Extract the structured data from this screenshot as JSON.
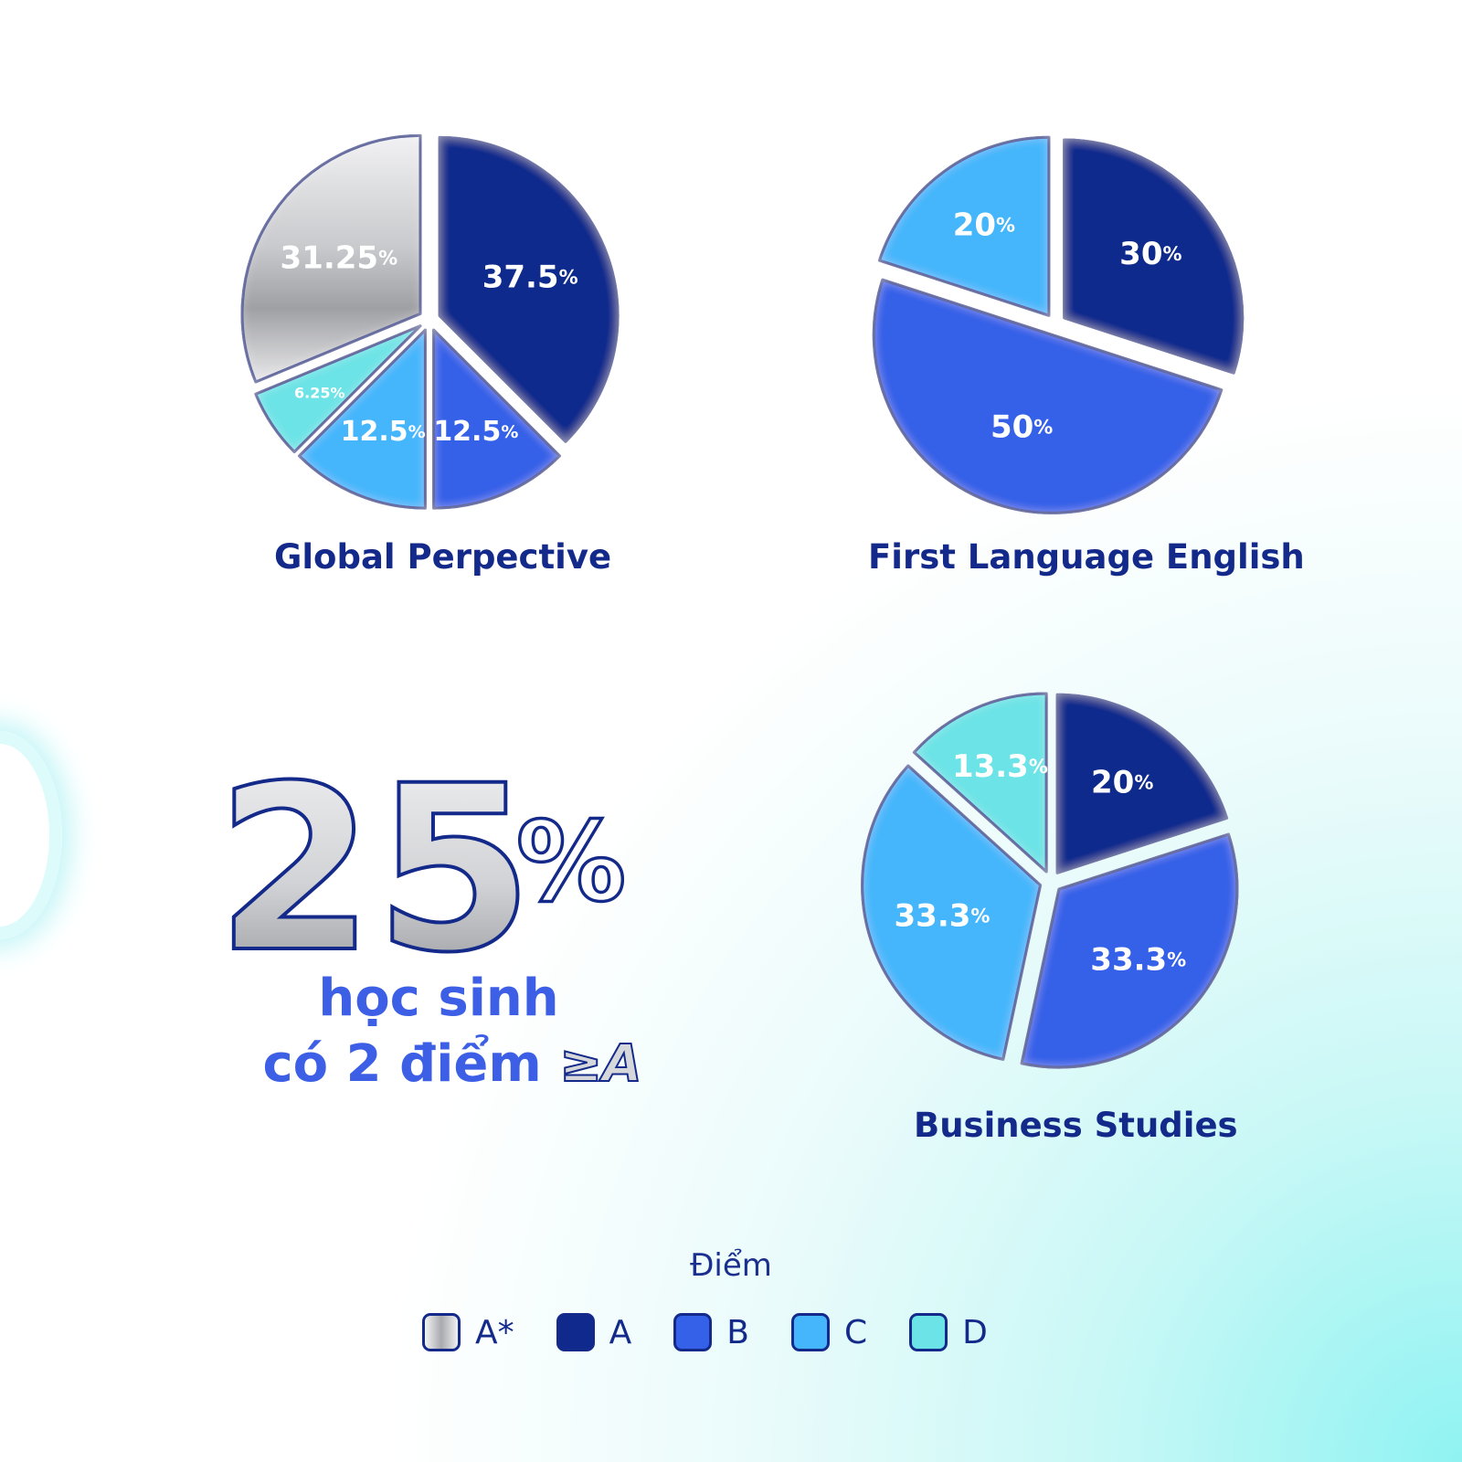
{
  "chart_data": [
    {
      "type": "pie",
      "title": "Global Perpective",
      "slices": [
        {
          "grade": "A",
          "value": 37.5,
          "label": "37.5",
          "unit": "%"
        },
        {
          "grade": "B",
          "value": 12.5,
          "label": "12.5",
          "unit": "%"
        },
        {
          "grade": "C",
          "value": 12.5,
          "label": "12.5",
          "unit": "%"
        },
        {
          "grade": "D",
          "value": 6.25,
          "label": "6.25%",
          "unit": ""
        },
        {
          "grade": "A*",
          "value": 31.25,
          "label": "31.25",
          "unit": "%"
        }
      ]
    },
    {
      "type": "pie",
      "title": "First Language English",
      "slices": [
        {
          "grade": "A",
          "value": 30,
          "label": "30",
          "unit": "%"
        },
        {
          "grade": "B",
          "value": 50,
          "label": "50",
          "unit": "%"
        },
        {
          "grade": "C",
          "value": 20,
          "label": "20",
          "unit": "%"
        }
      ]
    },
    {
      "type": "pie",
      "title": "Business Studies",
      "slices": [
        {
          "grade": "A",
          "value": 20,
          "label": "20",
          "unit": "%"
        },
        {
          "grade": "B",
          "value": 33.3,
          "label": "33.3",
          "unit": "%"
        },
        {
          "grade": "C",
          "value": 33.3,
          "label": "33.3",
          "unit": "%"
        },
        {
          "grade": "D",
          "value": 13.3,
          "label": "13.3",
          "unit": "%"
        }
      ]
    }
  ],
  "highlight": {
    "number": "25",
    "percent_sign": "%",
    "line1": "học sinh",
    "line2": "có 2 điểm",
    "badge": "≥A"
  },
  "legend": {
    "title": "Điểm",
    "items": [
      {
        "grade": "A*",
        "label": "A*"
      },
      {
        "grade": "A",
        "label": "A"
      },
      {
        "grade": "B",
        "label": "B"
      },
      {
        "grade": "C",
        "label": "C"
      },
      {
        "grade": "D",
        "label": "D"
      }
    ]
  },
  "colors": {
    "A*": "silver-gradient",
    "A": "#0f2a8c",
    "B": "#3560e8",
    "C": "#45b6fb",
    "D": "#6ce3e6",
    "outline": "#142a8a"
  }
}
